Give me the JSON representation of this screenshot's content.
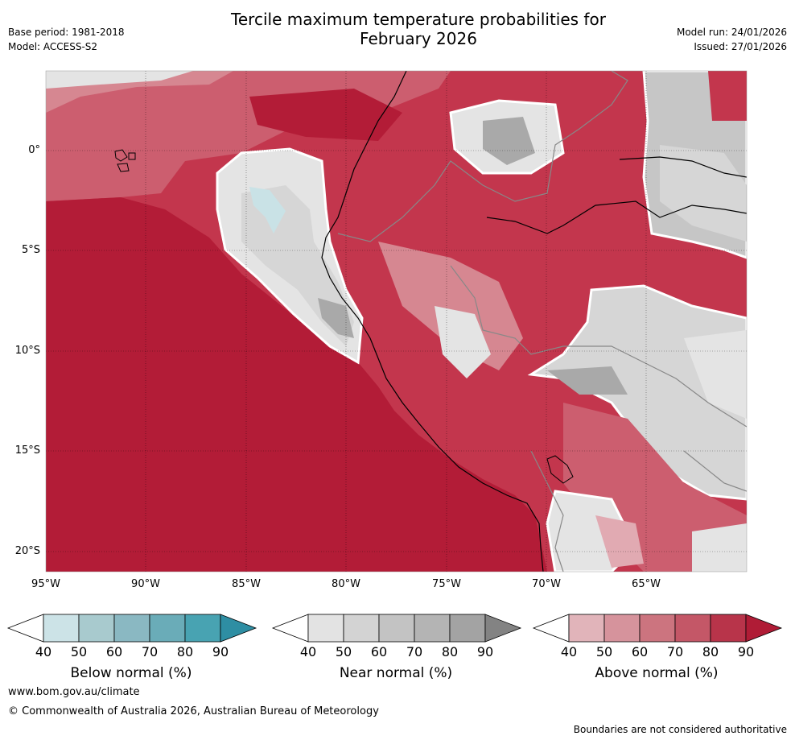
{
  "header": {
    "title_line1": "Tercile maximum temperature probabilities for",
    "title_line2": "February 2026",
    "base_period": "Base period: 1981-2018",
    "model": "Model: ACCESS-S2",
    "model_run": "Model run: 24/01/2026",
    "issued": "Issued: 27/01/2026"
  },
  "map": {
    "lat_ticks": [
      "0°",
      "5°S",
      "10°S",
      "15°S",
      "20°S"
    ],
    "lon_ticks": [
      "95°W",
      "90°W",
      "85°W",
      "80°W",
      "75°W",
      "70°W",
      "65°W"
    ],
    "colors": {
      "ocean_above_90": "#b31c37",
      "above_80": "#c3364d",
      "above_70": "#cc5e6f",
      "above_60": "#d68791",
      "above_50": "#e1aab2",
      "near_light": "#e4e4e4",
      "near_50": "#d6d6d6",
      "near_60": "#c6c6c6",
      "near_70": "#a9a9a9",
      "below_50": "#c9e2e6"
    }
  },
  "colorbars": [
    {
      "label": "Below normal (%)",
      "ticks": [
        "40",
        "50",
        "60",
        "70",
        "80",
        "90"
      ],
      "colors": [
        "#ffffff",
        "#cce3e7",
        "#a8cace",
        "#8ab8c2",
        "#6aacb8",
        "#48a3b2",
        "#2e8ea3"
      ]
    },
    {
      "label": "Near normal (%)",
      "ticks": [
        "40",
        "50",
        "60",
        "70",
        "80",
        "90"
      ],
      "colors": [
        "#ffffff",
        "#e3e3e3",
        "#d3d3d3",
        "#c3c3c3",
        "#b4b4b4",
        "#a3a3a3",
        "#838383"
      ]
    },
    {
      "label": "Above normal (%)",
      "ticks": [
        "40",
        "50",
        "60",
        "70",
        "80",
        "90"
      ],
      "colors": [
        "#ffffff",
        "#e1b4ba",
        "#d6939c",
        "#cc747f",
        "#c45767",
        "#b8344a",
        "#b01c36"
      ]
    }
  ],
  "footer": {
    "website": "www.bom.gov.au/climate",
    "copyright": "© Commonwealth of Australia 2026, Australian Bureau of Meteorology",
    "disclaimer": "Boundaries are not considered authoritative"
  }
}
